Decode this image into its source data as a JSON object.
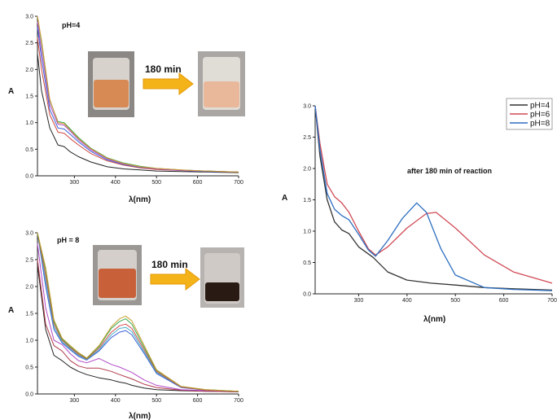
{
  "chart_data": [
    {
      "type": "line",
      "title": "pH=4",
      "xlabel": "λ(nm)",
      "ylabel": "A",
      "xlim": [
        210,
        700
      ],
      "ylim": [
        0,
        3.0
      ],
      "xticks": [
        "300",
        "400",
        "500",
        "600",
        "700"
      ],
      "yticks": [
        "0.0",
        "0.5",
        "1.0",
        "1.5",
        "2.0",
        "2.5",
        "3.0"
      ],
      "x": [
        210,
        220,
        240,
        260,
        275,
        290,
        310,
        340,
        380,
        420,
        460,
        500,
        560,
        620,
        700
      ],
      "series": [
        {
          "color": "#222222",
          "values": [
            2.3,
            1.6,
            0.9,
            0.58,
            0.55,
            0.45,
            0.36,
            0.26,
            0.17,
            0.13,
            0.11,
            0.09,
            0.08,
            0.07,
            0.06
          ]
        },
        {
          "color": "#d0473d",
          "values": [
            2.6,
            2.0,
            1.15,
            0.82,
            0.8,
            0.7,
            0.58,
            0.42,
            0.28,
            0.2,
            0.15,
            0.12,
            0.1,
            0.08,
            0.07
          ]
        },
        {
          "color": "#3b5fd6",
          "values": [
            2.8,
            2.2,
            1.25,
            0.9,
            0.88,
            0.78,
            0.64,
            0.46,
            0.3,
            0.21,
            0.16,
            0.13,
            0.1,
            0.08,
            0.07
          ]
        },
        {
          "color": "#b14ac6",
          "values": [
            2.9,
            2.35,
            1.35,
            0.97,
            0.95,
            0.84,
            0.68,
            0.49,
            0.32,
            0.22,
            0.17,
            0.13,
            0.1,
            0.09,
            0.07
          ]
        },
        {
          "color": "#3aa84a",
          "values": [
            3.0,
            2.5,
            1.42,
            1.02,
            1.0,
            0.88,
            0.72,
            0.52,
            0.34,
            0.24,
            0.18,
            0.14,
            0.11,
            0.09,
            0.07
          ]
        },
        {
          "color": "#d79a3a",
          "values": [
            3.0,
            2.55,
            1.44,
            1.0,
            0.98,
            0.86,
            0.7,
            0.51,
            0.33,
            0.23,
            0.17,
            0.14,
            0.11,
            0.09,
            0.07
          ]
        }
      ]
    },
    {
      "type": "line",
      "title": "pH = 8",
      "xlabel": "λ(nm)",
      "ylabel": "A",
      "xlim": [
        210,
        700
      ],
      "ylim": [
        0,
        3.0
      ],
      "xticks": [
        "300",
        "400",
        "500",
        "600",
        "700"
      ],
      "yticks": [
        "0.0",
        "0.5",
        "1.0",
        "1.5",
        "2.0",
        "2.5",
        "3.0"
      ],
      "x": [
        210,
        230,
        250,
        270,
        290,
        310,
        330,
        360,
        390,
        410,
        425,
        440,
        470,
        500,
        560,
        620,
        700
      ],
      "series": [
        {
          "color": "#222222",
          "values": [
            2.4,
            1.2,
            0.72,
            0.62,
            0.5,
            0.42,
            0.36,
            0.3,
            0.26,
            0.22,
            0.2,
            0.16,
            0.11,
            0.08,
            0.06,
            0.05,
            0.04
          ]
        },
        {
          "color": "#b03a4a",
          "values": [
            2.5,
            1.3,
            0.9,
            0.8,
            0.62,
            0.52,
            0.48,
            0.48,
            0.42,
            0.36,
            0.32,
            0.28,
            0.18,
            0.12,
            0.07,
            0.05,
            0.04
          ]
        },
        {
          "color": "#b14ac6",
          "values": [
            2.8,
            1.6,
            1.0,
            0.92,
            0.75,
            0.62,
            0.58,
            0.66,
            0.55,
            0.5,
            0.45,
            0.4,
            0.26,
            0.16,
            0.08,
            0.06,
            0.05
          ]
        },
        {
          "color": "#3b5fd6",
          "values": [
            3.0,
            2.0,
            1.2,
            0.95,
            0.82,
            0.7,
            0.63,
            0.8,
            1.05,
            1.15,
            1.18,
            1.1,
            0.75,
            0.38,
            0.12,
            0.07,
            0.05
          ]
        },
        {
          "color": "#46b0c8",
          "values": [
            3.0,
            2.1,
            1.25,
            0.97,
            0.84,
            0.72,
            0.64,
            0.82,
            1.1,
            1.22,
            1.24,
            1.16,
            0.78,
            0.4,
            0.13,
            0.07,
            0.05
          ]
        },
        {
          "color": "#d04a4a",
          "values": [
            3.0,
            2.2,
            1.3,
            1.0,
            0.86,
            0.74,
            0.65,
            0.85,
            1.15,
            1.27,
            1.3,
            1.22,
            0.82,
            0.42,
            0.13,
            0.07,
            0.05
          ]
        },
        {
          "color": "#3aa84a",
          "values": [
            3.0,
            2.3,
            1.35,
            1.02,
            0.88,
            0.76,
            0.66,
            0.88,
            1.22,
            1.35,
            1.4,
            1.3,
            0.86,
            0.44,
            0.14,
            0.08,
            0.05
          ]
        },
        {
          "color": "#c8a030",
          "values": [
            3.0,
            2.35,
            1.38,
            1.04,
            0.9,
            0.77,
            0.67,
            0.9,
            1.25,
            1.4,
            1.45,
            1.36,
            0.9,
            0.45,
            0.14,
            0.08,
            0.05
          ]
        }
      ]
    },
    {
      "type": "line",
      "title": "after 180 min of reaction",
      "xlabel": "λ(nm)",
      "ylabel": "A",
      "xlim": [
        210,
        700
      ],
      "ylim": [
        0,
        3.0
      ],
      "xticks": [
        "300",
        "400",
        "500",
        "600",
        "700"
      ],
      "yticks": [
        "0.0",
        "0.5",
        "1.0",
        "1.5",
        "2.0",
        "2.5",
        "3.0"
      ],
      "legend": "top-right",
      "series": [
        {
          "name": "pH=4",
          "color": "#333333",
          "x": [
            210,
            220,
            235,
            250,
            265,
            280,
            300,
            330,
            360,
            400,
            450,
            500,
            560,
            620,
            700
          ],
          "values": [
            3.0,
            2.2,
            1.5,
            1.15,
            1.02,
            0.96,
            0.75,
            0.58,
            0.35,
            0.22,
            0.17,
            0.14,
            0.1,
            0.08,
            0.06
          ]
        },
        {
          "name": "pH=6",
          "color": "#d04a55",
          "x": [
            210,
            220,
            235,
            250,
            265,
            280,
            300,
            320,
            335,
            360,
            400,
            440,
            460,
            500,
            560,
            620,
            700
          ],
          "values": [
            3.0,
            2.4,
            1.75,
            1.55,
            1.45,
            1.3,
            1.0,
            0.72,
            0.62,
            0.75,
            1.05,
            1.28,
            1.3,
            1.05,
            0.62,
            0.35,
            0.17
          ]
        },
        {
          "name": "pH=8",
          "color": "#2e6fc0",
          "x": [
            210,
            220,
            235,
            250,
            265,
            280,
            300,
            320,
            335,
            360,
            390,
            420,
            440,
            470,
            500,
            560,
            620,
            700
          ],
          "values": [
            3.0,
            2.3,
            1.6,
            1.35,
            1.25,
            1.18,
            0.95,
            0.7,
            0.6,
            0.85,
            1.2,
            1.45,
            1.3,
            0.72,
            0.3,
            0.1,
            0.07,
            0.05
          ]
        }
      ]
    }
  ],
  "annotations": {
    "arrow_top": "180 min",
    "arrow_bottom": "180 min"
  },
  "photos": {
    "top_before": {
      "liquid": "#d88a55",
      "glass": "#d7d2cc"
    },
    "top_after": {
      "liquid": "#e9b89a",
      "glass": "#e0dcd6"
    },
    "bottom_before": {
      "liquid": "#c8603a",
      "glass": "#d4cfca"
    },
    "bottom_after": {
      "liquid": "#2a1a14",
      "glass": "#cfcac6"
    }
  },
  "colors": {
    "arrow": "#f5b31a",
    "arrow_edge": "#e39a06"
  }
}
